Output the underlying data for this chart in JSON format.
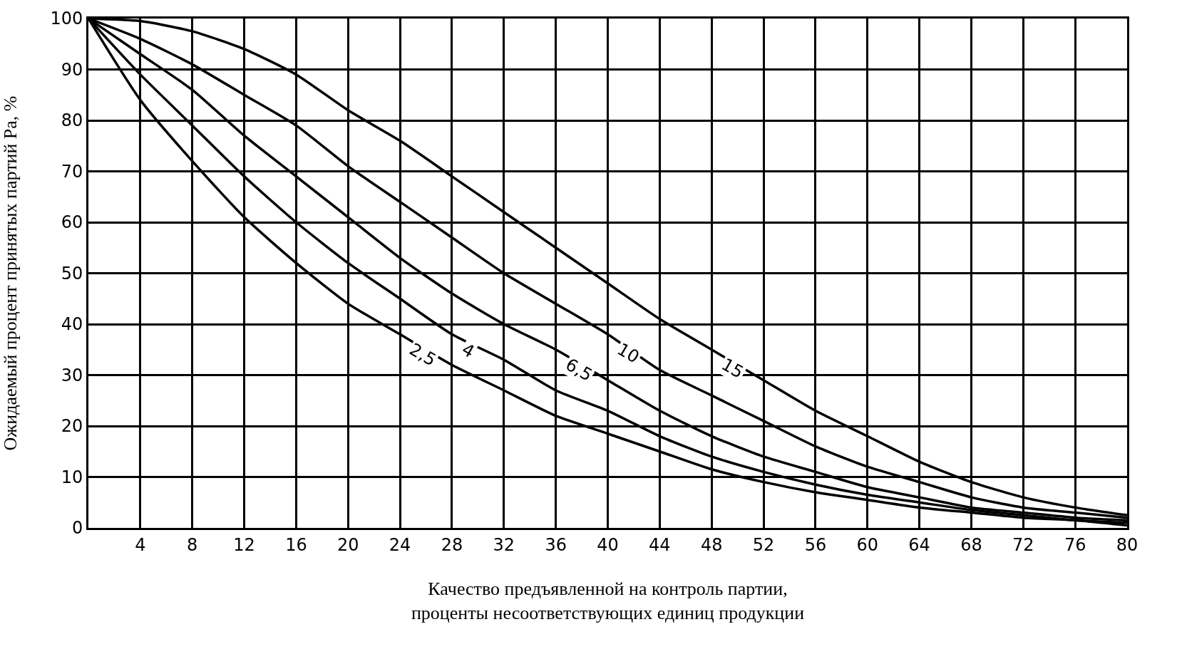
{
  "chart_data": {
    "type": "line",
    "xlabel": "Качество предъявленной на контроль партии,\nпроценты несоответствующих единиц продукции",
    "ylabel": "Ожидаемый процент принятых партий Pa, %",
    "x": [
      0,
      4,
      8,
      12,
      16,
      20,
      24,
      28,
      32,
      36,
      40,
      44,
      48,
      52,
      56,
      60,
      64,
      68,
      72,
      76,
      80
    ],
    "series": [
      {
        "name": "2,5",
        "color": "#000000",
        "values": [
          100,
          84,
          72,
          61,
          52,
          44,
          38,
          32,
          27,
          22,
          18.5,
          15,
          11.5,
          9,
          7,
          5.5,
          4,
          3,
          2,
          1.5,
          0.5
        ]
      },
      {
        "name": "4",
        "color": "#000000",
        "values": [
          100,
          89,
          79,
          69,
          60,
          52,
          45,
          38,
          33,
          27,
          23,
          18,
          14,
          11,
          8.5,
          6.5,
          5,
          3.5,
          2.5,
          1.5,
          1
        ]
      },
      {
        "name": "6,5",
        "color": "#000000",
        "values": [
          100,
          93,
          86,
          77,
          69,
          61,
          53,
          46,
          40,
          35,
          29,
          23,
          18,
          14,
          11,
          8,
          6,
          4,
          3,
          2,
          1.5
        ]
      },
      {
        "name": "10",
        "color": "#000000",
        "values": [
          100,
          96,
          91,
          85,
          79,
          71,
          64,
          57,
          50,
          44,
          38,
          31,
          26,
          21,
          16,
          12,
          9,
          6,
          4,
          3,
          2
        ]
      },
      {
        "name": "15",
        "color": "#000000",
        "values": [
          100,
          99.5,
          97.5,
          94,
          89,
          82,
          76,
          69,
          62,
          55,
          48,
          41,
          35,
          29,
          23,
          18,
          13,
          9,
          6,
          4,
          2.5
        ]
      }
    ],
    "xlim": [
      0,
      80
    ],
    "ylim": [
      0,
      100
    ],
    "xticks": [
      4,
      8,
      12,
      16,
      20,
      24,
      28,
      32,
      36,
      40,
      44,
      48,
      52,
      56,
      60,
      64,
      68,
      72,
      76,
      80
    ],
    "yticks": [
      0,
      10,
      20,
      30,
      40,
      50,
      60,
      70,
      80,
      90,
      100
    ],
    "grid": true,
    "legend": false,
    "marker": "none",
    "line_style": "solid"
  }
}
